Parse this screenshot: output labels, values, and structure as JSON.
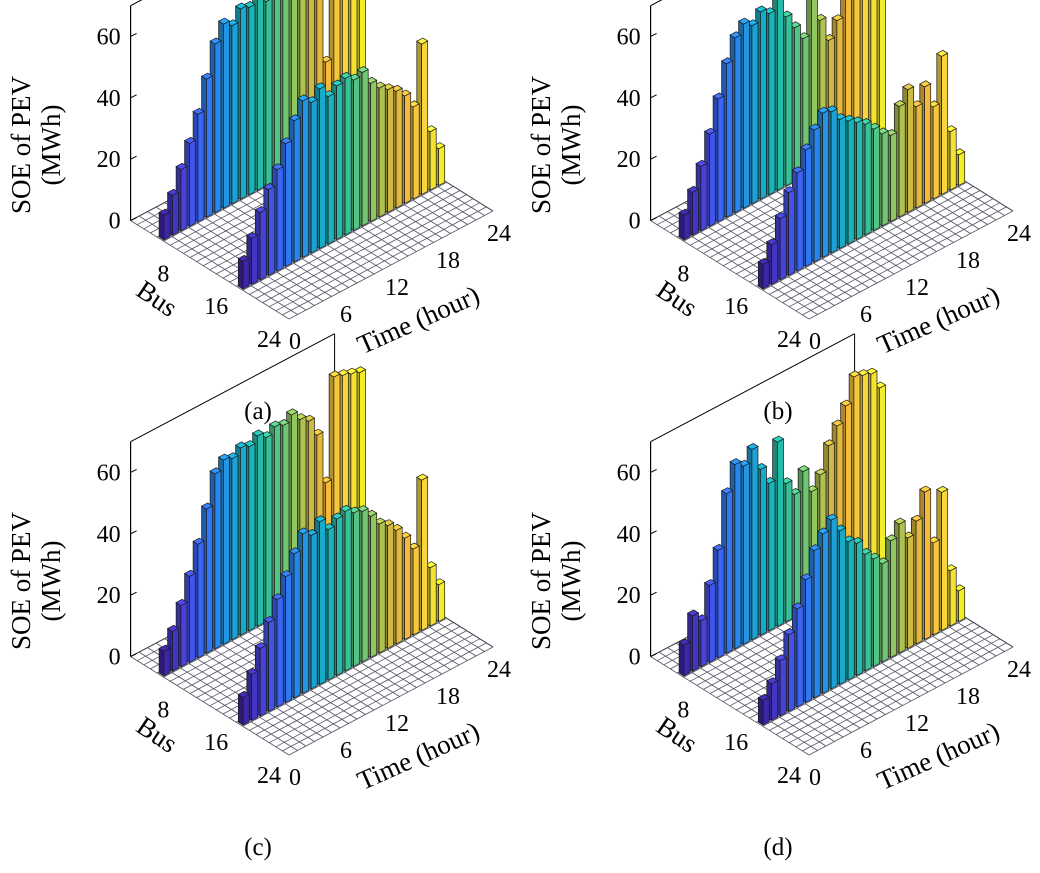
{
  "figure": {
    "panels": [
      {
        "caption": "(a)"
      },
      {
        "caption": "(b)"
      },
      {
        "caption": "(c)"
      },
      {
        "caption": "(d)"
      }
    ]
  },
  "colors": {
    "colormap": [
      "#3e26a8",
      "#4840d8",
      "#3d63f5",
      "#2a84f0",
      "#1e9dd9",
      "#16b1bf",
      "#2cbea2",
      "#5ec67e",
      "#9bc75a",
      "#d2b93f",
      "#f5b93b",
      "#f8d63a",
      "#f2ee2a"
    ],
    "floor_grid": "#555566",
    "edge": "#1a1a1a"
  },
  "chart_data": [
    {
      "type": "bar3d",
      "title": "",
      "zlabel": "SOE of PEV\n(MWh)",
      "xlabel": "Time (hour)",
      "ylabel": "Bus",
      "zlim": [
        0,
        70
      ],
      "ztick_labels": [
        "0",
        "20",
        "40",
        "60"
      ],
      "xtick_labels": [
        "0",
        "6",
        "12",
        "18",
        "24"
      ],
      "ytick_labels": [
        "8",
        "16",
        "24"
      ],
      "bus_rows": [
        5,
        17
      ],
      "time_hours": [
        1,
        2,
        3,
        4,
        5,
        6,
        7,
        8,
        9,
        10,
        11,
        12,
        13,
        14,
        15,
        16,
        17,
        18,
        19,
        20,
        21,
        22,
        23,
        24
      ],
      "series": [
        {
          "bus": 5,
          "values": [
            8,
            13,
            20,
            27,
            35,
            45,
            55,
            60,
            58,
            62,
            61,
            62,
            60,
            63,
            62,
            64,
            60,
            63,
            57,
            30,
            68,
            67,
            66,
            65
          ]
        },
        {
          "bus": 17,
          "values": [
            9,
            15,
            22,
            28,
            33,
            40,
            46,
            51,
            49,
            52,
            48,
            50,
            51,
            49,
            50,
            45,
            42,
            40,
            38,
            35,
            30,
            49,
            19,
            12
          ]
        }
      ]
    },
    {
      "type": "bar3d",
      "title": "",
      "zlabel": "SOE of PEV\n(MWh)",
      "xlabel": "Time (hour)",
      "ylabel": "Bus",
      "zlim": [
        0,
        70
      ],
      "ztick_labels": [
        "0",
        "20",
        "40",
        "60"
      ],
      "xtick_labels": [
        "0",
        "6",
        "12",
        "18",
        "24"
      ],
      "ytick_labels": [
        "8",
        "16",
        "24"
      ],
      "bus_rows": [
        5,
        17
      ],
      "time_hours": [
        1,
        2,
        3,
        4,
        5,
        6,
        7,
        8,
        9,
        10,
        11,
        12,
        13,
        14,
        15,
        16,
        17,
        18,
        19,
        20,
        21,
        22,
        23,
        24
      ],
      "series": [
        {
          "bus": 5,
          "values": [
            8,
            14,
            21,
            30,
            40,
            50,
            57,
            60,
            58,
            61,
            59,
            62,
            55,
            50,
            45,
            57,
            48,
            40,
            45,
            55,
            68,
            67,
            66,
            65
          ]
        },
        {
          "bus": 17,
          "values": [
            8,
            13,
            20,
            27,
            32,
            38,
            43,
            47,
            46,
            42,
            40,
            38,
            36,
            33,
            30,
            28,
            36,
            40,
            33,
            38,
            30,
            45,
            19,
            10
          ]
        }
      ]
    },
    {
      "type": "bar3d",
      "title": "",
      "zlabel": "SOE of PEV\n(MWh)",
      "xlabel": "Time (hour)",
      "ylabel": "Bus",
      "zlim": [
        0,
        70
      ],
      "ztick_labels": [
        "0",
        "20",
        "40",
        "60"
      ],
      "xtick_labels": [
        "0",
        "6",
        "12",
        "18",
        "24"
      ],
      "ytick_labels": [
        "8",
        "16",
        "24"
      ],
      "bus_rows": [
        5,
        17
      ],
      "time_hours": [
        1,
        2,
        3,
        4,
        5,
        6,
        7,
        8,
        9,
        10,
        11,
        12,
        13,
        14,
        15,
        16,
        17,
        18,
        19,
        20,
        21,
        22,
        23,
        24
      ],
      "series": [
        {
          "bus": 5,
          "values": [
            8,
            13,
            20,
            28,
            37,
            47,
            57,
            60,
            59,
            61,
            60,
            62,
            60,
            62,
            61,
            63,
            60,
            58,
            52,
            35,
            68,
            67,
            66,
            65
          ]
        },
        {
          "bus": 17,
          "values": [
            9,
            15,
            22,
            29,
            35,
            41,
            47,
            52,
            50,
            53,
            49,
            51,
            52,
            50,
            49,
            46,
            42,
            40,
            37,
            33,
            28,
            49,
            19,
            12
          ]
        }
      ]
    },
    {
      "type": "bar3d",
      "title": "",
      "zlabel": "SOE of PEV\n(MWh)",
      "xlabel": "Time (hour)",
      "ylabel": "Bus",
      "zlim": [
        0,
        70
      ],
      "ztick_labels": [
        "0",
        "20",
        "40",
        "60"
      ],
      "xtick_labels": [
        "0",
        "6",
        "12",
        "18",
        "24"
      ],
      "ytick_labels": [
        "8",
        "16",
        "24"
      ],
      "bus_rows": [
        5,
        17
      ],
      "time_hours": [
        1,
        2,
        3,
        4,
        5,
        6,
        7,
        8,
        9,
        10,
        11,
        12,
        13,
        14,
        15,
        16,
        17,
        18,
        19,
        20,
        21,
        22,
        23,
        24
      ],
      "series": [
        {
          "bus": 5,
          "values": [
            10,
            18,
            15,
            25,
            35,
            52,
            60,
            58,
            62,
            54,
            48,
            60,
            45,
            40,
            46,
            38,
            42,
            50,
            55,
            60,
            68,
            67,
            66,
            60
          ]
        },
        {
          "bus": 17,
          "values": [
            8,
            12,
            18,
            25,
            32,
            40,
            48,
            52,
            55,
            50,
            45,
            43,
            38,
            35,
            32,
            38,
            42,
            36,
            40,
            48,
            30,
            45,
            18,
            10
          ]
        }
      ]
    }
  ]
}
